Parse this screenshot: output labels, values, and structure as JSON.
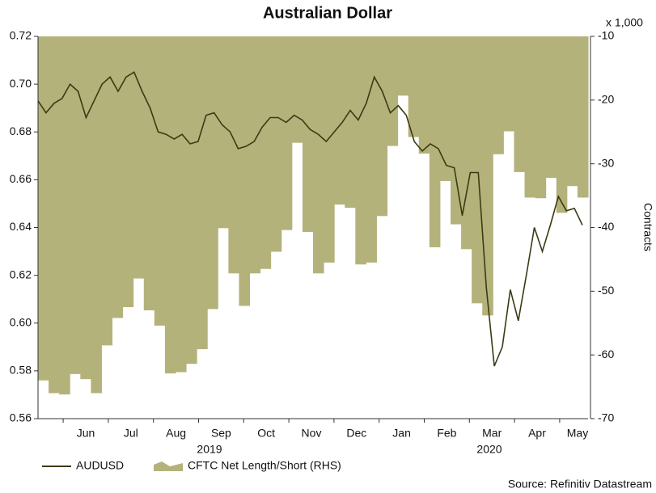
{
  "chart_data": {
    "type": "line-area",
    "title": "Australian Dollar",
    "y2_unit": "x 1,000",
    "y2label": "Contracts",
    "source": "Source: Refinitiv Datastream",
    "months": [
      "Jun",
      "Jul",
      "Aug",
      "Sep",
      "Oct",
      "Nov",
      "Dec",
      "Jan",
      "Feb",
      "Mar",
      "Apr",
      "May"
    ],
    "years": [
      "2019",
      "2020"
    ],
    "ylim": [
      0.56,
      0.72
    ],
    "yticks": [
      0.56,
      0.58,
      {
        "value": 0.6,
        "label": "0.60"
      },
      0.62,
      0.64,
      0.66,
      0.68,
      {
        "value": 0.7,
        "label": "0.70"
      },
      0.72
    ],
    "y2lim": [
      -70,
      -10
    ],
    "y2ticks": [
      -70,
      -60,
      -50,
      -40,
      -30,
      -20,
      -10
    ],
    "series": [
      {
        "name": "AUDUSD",
        "kind": "line",
        "color": "#3b3a12",
        "values": [
          0.693,
          0.688,
          0.692,
          0.694,
          0.7,
          0.697,
          0.686,
          0.693,
          0.7,
          0.703,
          0.697,
          0.703,
          0.705,
          0.697,
          0.69,
          0.68,
          0.679,
          0.677,
          0.679,
          0.675,
          0.676,
          0.687,
          0.688,
          0.683,
          0.68,
          0.673,
          0.674,
          0.676,
          0.682,
          0.686,
          0.686,
          0.684,
          0.687,
          0.685,
          0.681,
          0.679,
          0.676,
          0.68,
          0.684,
          0.689,
          0.685,
          0.692,
          0.703,
          0.697,
          0.688,
          0.691,
          0.687,
          0.676,
          0.672,
          0.675,
          0.673,
          0.666,
          0.665,
          0.645,
          0.663,
          0.663,
          0.615,
          0.582,
          0.59,
          0.614,
          0.601,
          0.62,
          0.64,
          0.63,
          0.641,
          0.653,
          0.647,
          0.648,
          0.641
        ]
      },
      {
        "name": "CFTC Net Length/Short (RHS)",
        "kind": "area",
        "axis": "y2",
        "color": "#b4b27b",
        "values": [
          -64,
          -66,
          -66.2,
          -63,
          -63.8,
          -66,
          -58.5,
          -54.2,
          -52.5,
          -48,
          -53,
          -55.4,
          -62.9,
          -62.7,
          -61.4,
          -59.1,
          -52.8,
          -40.1,
          -47.2,
          -52.3,
          -47.2,
          -46.5,
          -43.8,
          -40.4,
          -26.7,
          -40.7,
          -47.2,
          -45.5,
          -36.4,
          -36.9,
          -45.8,
          -45.5,
          -38.2,
          -27.2,
          -19.3,
          -25.8,
          -28.4,
          -43.1,
          -32.7,
          -39.5,
          -43.4,
          -51.9,
          -53.8,
          -28.5,
          -24.9,
          -31.3,
          -35.3,
          -35.4,
          -32.2,
          -37.7,
          -33.5,
          -35.3
        ]
      }
    ]
  }
}
